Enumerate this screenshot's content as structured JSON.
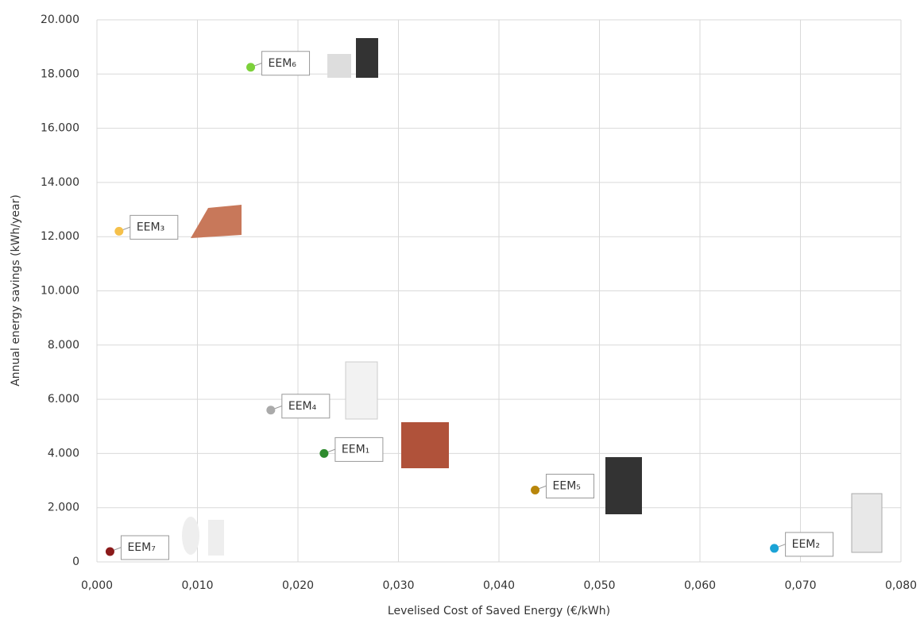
{
  "chart_data": {
    "type": "scatter",
    "x_label": "Levelised Cost of Saved Energy (€/kWh)",
    "y_label": "Annual energy savings (kWh/year)",
    "xlim": [
      0,
      0.08
    ],
    "xticks": [
      {
        "value": 0,
        "label": "0,000"
      },
      {
        "value": 0.01,
        "label": "0,010"
      },
      {
        "value": 0.02,
        "label": "0,020"
      },
      {
        "value": 0.03,
        "label": "0,030"
      },
      {
        "value": 0.04,
        "label": "0,040"
      },
      {
        "value": 0.05,
        "label": "0,050"
      },
      {
        "value": 0.06,
        "label": "0,060"
      },
      {
        "value": 0.07,
        "label": "0,070"
      },
      {
        "value": 0.08,
        "label": "0,080"
      }
    ],
    "ylim": [
      0,
      20000
    ],
    "yticks": [
      0,
      {
        "value": 2000,
        "label": "2.000"
      },
      {
        "value": 4000,
        "label": "4.000"
      },
      {
        "value": 6000,
        "label": "6.000"
      },
      {
        "value": 8000,
        "label": "8.000"
      },
      {
        "value": 10000,
        "label": "10.000"
      },
      {
        "value": 12000,
        "label": "12.000"
      },
      {
        "value": 14000,
        "label": "14.000"
      },
      {
        "value": 16000,
        "label": "16.000"
      },
      {
        "value": 18000,
        "label": "18.000"
      },
      {
        "value": 20000,
        "label": "20.000"
      }
    ],
    "grid": true,
    "series": [
      {
        "name": "EEM₁",
        "color": "#2e8b2e",
        "x": [
          0.0226
        ],
        "values": [
          4000
        ]
      },
      {
        "name": "EEM₂",
        "color": "#1ba3d6",
        "x": [
          0.0674
        ],
        "values": [
          500
        ]
      },
      {
        "name": "EEM₃",
        "color": "#f5c04a",
        "x": [
          0.0022
        ],
        "values": [
          12200
        ]
      },
      {
        "name": "EEM₄",
        "color": "#aaaaaa",
        "x": [
          0.0173
        ],
        "values": [
          5600
        ]
      },
      {
        "name": "EEM₅",
        "color": "#b8860b",
        "x": [
          0.0436
        ],
        "values": [
          2650
        ]
      },
      {
        "name": "EEM₆",
        "color": "#7cd13a",
        "x": [
          0.0153
        ],
        "values": [
          18250
        ]
      },
      {
        "name": "EEM₇",
        "color": "#8b1a1a",
        "x": [
          0.0013
        ],
        "values": [
          380
        ]
      }
    ]
  }
}
